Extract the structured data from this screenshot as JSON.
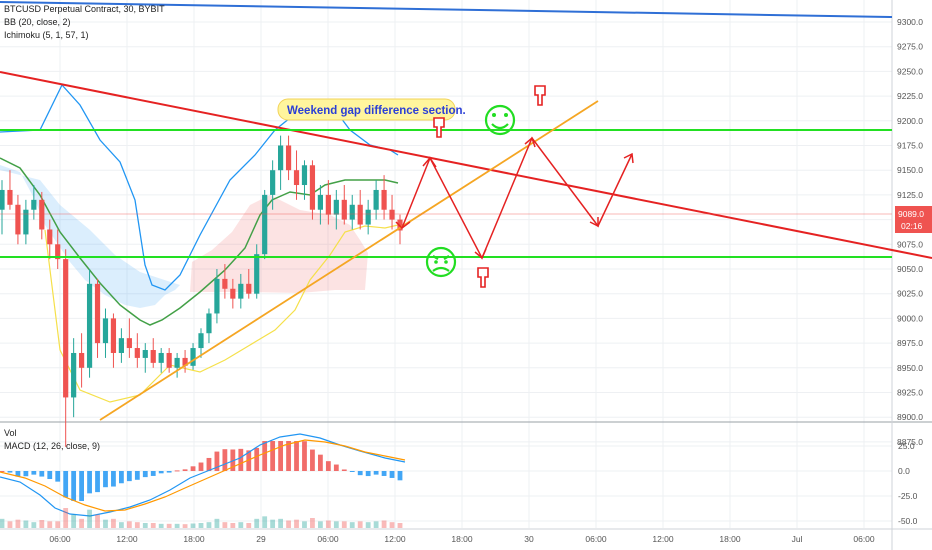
{
  "header": {
    "symbol_line": "BTCUSD Perpetual Contract, 30, BYBIT",
    "bb_line": "BB (20, close, 2)",
    "ichimoku_line": "Ichimoku (5, 1, 57, 1)"
  },
  "indicators": {
    "vol_label": "Vol",
    "macd_label": "MACD (12, 26, close, 9)"
  },
  "price_badge": {
    "price": "9089.0",
    "countdown": "02:16"
  },
  "annotation": {
    "text": "Weekend gap difference section."
  },
  "colors": {
    "up_candle": "#26a69a",
    "down_candle": "#ef5350",
    "trendline_red": "#e52222",
    "support_green": "#22e022",
    "bb_upper": "#2196f3",
    "bb_basis": "#43a047",
    "ichimoku_conversion": "#f5e04a",
    "orange_trend": "#f5a623",
    "downtrend_blue": "#2f6fd6"
  },
  "icons": [
    "smiley-face-icon",
    "angry-face-icon",
    "pointing-hand-down-icon"
  ],
  "chart_data": {
    "type": "candlestick",
    "price_axis": {
      "ylim": [
        8860,
        9320
      ],
      "ticks": [
        "9300.0",
        "9275.0",
        "9250.0",
        "9225.0",
        "9200.0",
        "9175.0",
        "9150.0",
        "9125.0",
        "9100.0",
        "9075.0",
        "9050.0",
        "9025.0",
        "9000.0",
        "8975.0",
        "8950.0",
        "8925.0",
        "8900.0",
        "8875.0"
      ]
    },
    "macd_axis": {
      "ticks": [
        "25.0",
        "0.0",
        "-25.0",
        "-50.0"
      ]
    },
    "time_axis": {
      "ticks": [
        "06:00",
        "12:00",
        "18:00",
        "29",
        "06:00",
        "12:00",
        "18:00",
        "30",
        "06:00",
        "12:00",
        "18:00",
        "Jul",
        "06:00"
      ]
    },
    "candles": [
      [
        9110,
        9140,
        9085,
        9130
      ],
      [
        9130,
        9150,
        9110,
        9115
      ],
      [
        9115,
        9125,
        9075,
        9085
      ],
      [
        9085,
        9120,
        9075,
        9110
      ],
      [
        9110,
        9135,
        9100,
        9120
      ],
      [
        9120,
        9128,
        9080,
        9090
      ],
      [
        9090,
        9100,
        9060,
        9075
      ],
      [
        9075,
        9090,
        9050,
        9060
      ],
      [
        9060,
        9070,
        8870,
        8920
      ],
      [
        8920,
        8980,
        8900,
        8965
      ],
      [
        8965,
        8985,
        8930,
        8950
      ],
      [
        8950,
        9050,
        8940,
        9035
      ],
      [
        9035,
        9040,
        8960,
        8975
      ],
      [
        8975,
        9010,
        8960,
        9000
      ],
      [
        9000,
        9005,
        8950,
        8965
      ],
      [
        8965,
        8990,
        8955,
        8980
      ],
      [
        8980,
        9000,
        8960,
        8970
      ],
      [
        8970,
        8985,
        8950,
        8960
      ],
      [
        8960,
        8975,
        8945,
        8968
      ],
      [
        8968,
        8980,
        8950,
        8955
      ],
      [
        8955,
        8970,
        8945,
        8965
      ],
      [
        8965,
        8970,
        8945,
        8950
      ],
      [
        8950,
        8965,
        8940,
        8960
      ],
      [
        8960,
        8968,
        8945,
        8952
      ],
      [
        8952,
        8975,
        8948,
        8970
      ],
      [
        8970,
        8990,
        8960,
        8985
      ],
      [
        8985,
        9010,
        8975,
        9005
      ],
      [
        9005,
        9050,
        8995,
        9040
      ],
      [
        9040,
        9055,
        9020,
        9030
      ],
      [
        9030,
        9040,
        9010,
        9020
      ],
      [
        9020,
        9045,
        9010,
        9035
      ],
      [
        9035,
        9050,
        9020,
        9025
      ],
      [
        9025,
        9075,
        9020,
        9065
      ],
      [
        9065,
        9130,
        9060,
        9125
      ],
      [
        9125,
        9160,
        9110,
        9150
      ],
      [
        9150,
        9185,
        9130,
        9175
      ],
      [
        9175,
        9185,
        9140,
        9150
      ],
      [
        9150,
        9170,
        9120,
        9135
      ],
      [
        9135,
        9160,
        9120,
        9155
      ],
      [
        9155,
        9160,
        9100,
        9110
      ],
      [
        9110,
        9135,
        9095,
        9125
      ],
      [
        9125,
        9140,
        9095,
        9105
      ],
      [
        9105,
        9130,
        9090,
        9120
      ],
      [
        9120,
        9135,
        9095,
        9100
      ],
      [
        9100,
        9125,
        9090,
        9115
      ],
      [
        9115,
        9130,
        9090,
        9095
      ],
      [
        9095,
        9120,
        9085,
        9110
      ],
      [
        9110,
        9140,
        9100,
        9130
      ],
      [
        9130,
        9145,
        9100,
        9110
      ],
      [
        9110,
        9125,
        9090,
        9100
      ],
      [
        9100,
        9105,
        9075,
        9089
      ]
    ],
    "annotations": [
      "Weekend gap difference section."
    ]
  }
}
